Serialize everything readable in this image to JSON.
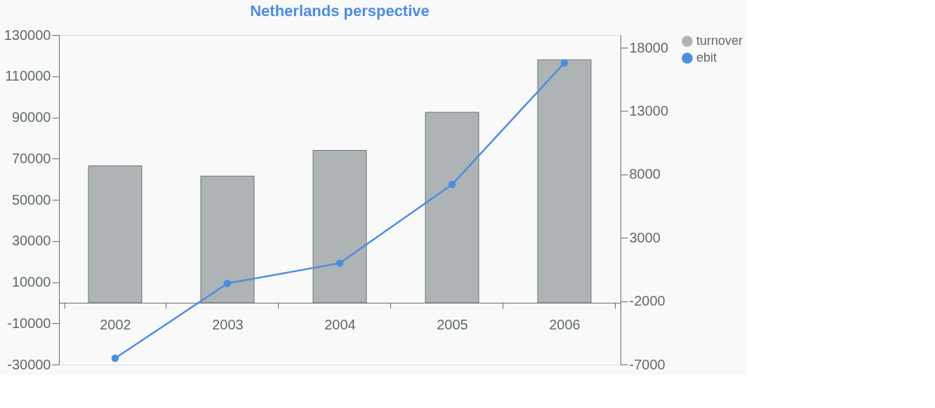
{
  "chart_data": {
    "type": "bar",
    "title": "Netherlands perspective",
    "categories": [
      "2002",
      "2003",
      "2004",
      "2005",
      "2006"
    ],
    "series": [
      {
        "name": "turnover",
        "color": "#aeb3b6",
        "values": [
          66500,
          61500,
          74000,
          92500,
          118000
        ]
      },
      {
        "name": "ebit",
        "type": "line",
        "axis": "y2",
        "color": "#4a8ee0",
        "values": [
          -6500,
          -600,
          1000,
          7200,
          16800
        ]
      }
    ],
    "ylim": [
      -30000,
      130000
    ],
    "yticks": [
      -30000,
      -10000,
      10000,
      30000,
      50000,
      70000,
      90000,
      110000,
      130000
    ],
    "y2lim": [
      -7000,
      19000
    ],
    "y2ticks": [
      -7000,
      -2000,
      3000,
      8000,
      13000,
      18000
    ],
    "marker": "circle",
    "grid": false,
    "legend": "right"
  }
}
